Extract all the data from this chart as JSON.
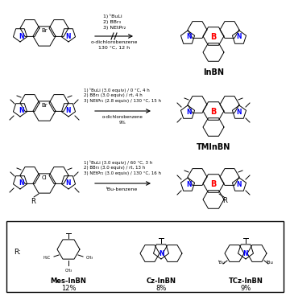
{
  "background_color": "#ffffff",
  "fig_width": 3.6,
  "fig_height": 3.68,
  "dpi": 100,
  "reaction1_reagents": "1) ᵗBuLi\n2) BBr₃\n3) NEtPr₂",
  "reaction1_conditions": "o-dichlorobenzene\n130 °C, 12 h",
  "reaction1_product": "InBN",
  "reaction2_reagents": "1) ᵗBuLi (3.0 equiv) / 0 °C, 4 h\n2) BBr₃ (3.0 equiv) / rt, 4 h\n3) NEtPr₂ (2.8 equiv) / 130 °C, 15 h",
  "reaction2_conditions": "o-dichlorobenzene\n9%",
  "reaction2_product": "TMInBN",
  "reaction3_reagents": "1) ᵗBuLi (3.0 equiv) / 60 °C, 3 h\n2) BBr₃ (3.0 equiv) / rt, 13 h\n3) NEtPr₂ (3.0 equiv) / 130 °C, 16 h",
  "reaction3_conditions": "ᵗBu-benzene",
  "box_labels": [
    "Mes-InBN",
    "Cz-InBN",
    "TCz-InBN"
  ],
  "box_yields": [
    "12%",
    "8%",
    "9%"
  ],
  "N_color": "#0000ff",
  "B_color": "#ff0000",
  "text_color": "#000000",
  "line_color": "#000000"
}
